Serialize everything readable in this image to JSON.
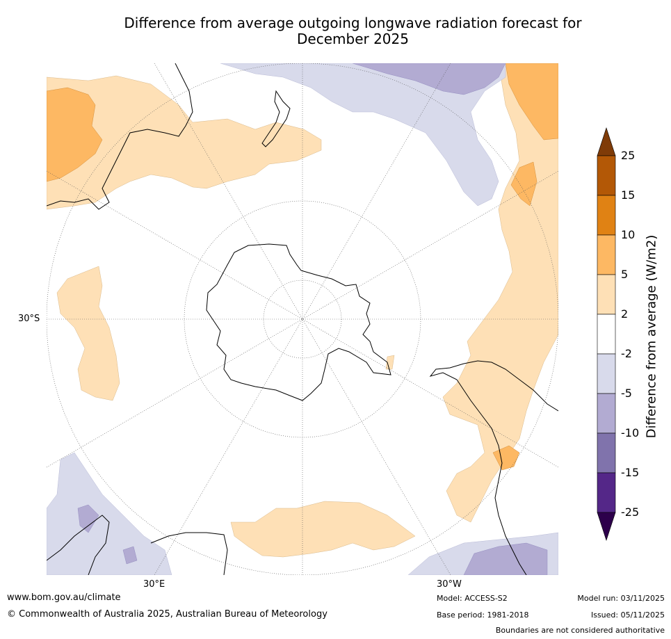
{
  "title": "Difference from average outgoing longwave radiation forecast for\nDecember 2025",
  "map": {
    "projection": "south-polar-stereographic",
    "lat_label": "30°S",
    "lon_labels": [
      "30°E",
      "30°W"
    ]
  },
  "colorbar": {
    "title": "Difference from average (W/m2)",
    "levels": [
      "25",
      "15",
      "10",
      "5",
      "2",
      "-2",
      "-5",
      "-10",
      "-15",
      "-25"
    ],
    "colors": [
      "#7f3b08",
      "#b35806",
      "#e08214",
      "#fdb863",
      "#fee0b6",
      "#ffffff",
      "#d8daeb",
      "#b2abd2",
      "#8073ac",
      "#542788",
      "#2d004b"
    ]
  },
  "footer": {
    "website": "www.bom.gov.au/climate",
    "copyright": "© Commonwealth of Australia 2025, Australian Bureau of Meteorology",
    "model": "Model: ACCESS-S2",
    "base_period": "Base period: 1981-2018",
    "model_run": "Model run: 03/11/2025",
    "issued": "Issued: 05/11/2025",
    "disclaimer": "Boundaries are not considered authoritative"
  }
}
